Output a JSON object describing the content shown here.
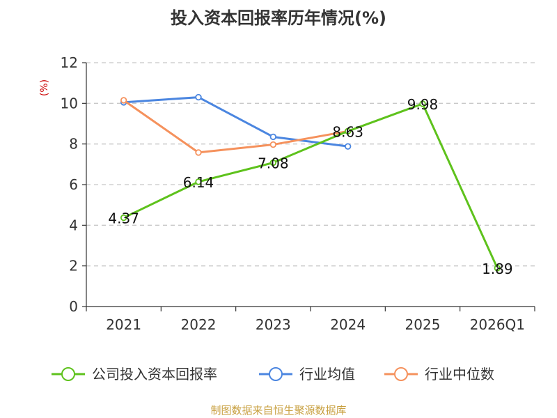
{
  "chart_data": {
    "type": "line",
    "title": "投入资本回报率历年情况(%)",
    "ylabel": "(%)",
    "categories": [
      "2021",
      "2022",
      "2023",
      "2024",
      "2025",
      "2026Q1"
    ],
    "ylim": [
      0,
      12
    ],
    "yticks": [
      0,
      2,
      4,
      6,
      8,
      10,
      12
    ],
    "grid": "horizontal-dashed",
    "legend_position": "bottom",
    "series": [
      {
        "name": "公司投入资本回报率",
        "color": "#5ec21c",
        "values": [
          4.37,
          6.14,
          7.08,
          8.63,
          9.98,
          1.89
        ],
        "labels": [
          "4.37",
          "6.14",
          "7.08",
          "8.63",
          "9.98",
          "1.89"
        ]
      },
      {
        "name": "行业均值",
        "color": "#4b86e0",
        "values": [
          10.05,
          10.3,
          8.35,
          7.88,
          null,
          null
        ]
      },
      {
        "name": "行业中位数",
        "color": "#f5915c",
        "values": [
          10.15,
          7.58,
          7.97,
          8.63,
          null,
          null
        ]
      }
    ]
  },
  "source": "制图数据来自恒生聚源数据库"
}
